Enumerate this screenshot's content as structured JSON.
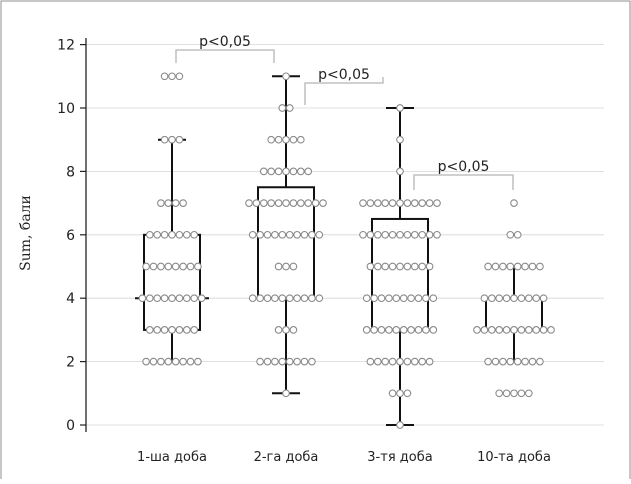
{
  "chart_data": {
    "type": "box",
    "ylabel": "Sum, бали",
    "ylim": [
      0,
      12
    ],
    "yticks": [
      0,
      2,
      4,
      6,
      8,
      10,
      12
    ],
    "grid": true,
    "categories": [
      "1-ша доба",
      "2-га доба",
      "3-тя доба",
      "10-та доба"
    ],
    "boxes": [
      {
        "whisker_low": 2,
        "q1": 3,
        "median": 4,
        "q3": 6,
        "whisker_high": 9
      },
      {
        "whisker_low": 1,
        "q1": 4,
        "median": 6,
        "q3": 7.5,
        "whisker_high": 11
      },
      {
        "whisker_low": 0,
        "q1": 3,
        "median": 6,
        "q3": 6.5,
        "whisker_high": 10
      },
      {
        "whisker_low": 2,
        "q1": 3,
        "median": 3,
        "q3": 4,
        "whisker_high": 5
      }
    ],
    "points": [
      [
        {
          "y": 11,
          "n": 3
        },
        {
          "y": 9,
          "n": 3
        },
        {
          "y": 7,
          "n": 4
        },
        {
          "y": 6,
          "n": 7
        },
        {
          "y": 5,
          "n": 8
        },
        {
          "y": 4,
          "n": 9
        },
        {
          "y": 3,
          "n": 7
        },
        {
          "y": 2,
          "n": 8
        }
      ],
      [
        {
          "y": 11,
          "n": 1
        },
        {
          "y": 10,
          "n": 2
        },
        {
          "y": 9,
          "n": 5
        },
        {
          "y": 8,
          "n": 7
        },
        {
          "y": 7,
          "n": 11
        },
        {
          "y": 6,
          "n": 10
        },
        {
          "y": 5,
          "n": 3
        },
        {
          "y": 4,
          "n": 10
        },
        {
          "y": 3,
          "n": 3
        },
        {
          "y": 2,
          "n": 8
        },
        {
          "y": 1,
          "n": 1
        }
      ],
      [
        {
          "y": 10,
          "n": 1
        },
        {
          "y": 9,
          "n": 1
        },
        {
          "y": 8,
          "n": 1
        },
        {
          "y": 7,
          "n": 11
        },
        {
          "y": 6,
          "n": 11
        },
        {
          "y": 5,
          "n": 9
        },
        {
          "y": 4,
          "n": 10
        },
        {
          "y": 3,
          "n": 10
        },
        {
          "y": 2,
          "n": 9
        },
        {
          "y": 1,
          "n": 3
        },
        {
          "y": 0,
          "n": 1
        }
      ],
      [
        {
          "y": 7,
          "n": 1
        },
        {
          "y": 6,
          "n": 2
        },
        {
          "y": 5,
          "n": 8
        },
        {
          "y": 4,
          "n": 9
        },
        {
          "y": 3,
          "n": 11
        },
        {
          "y": 2,
          "n": 8
        },
        {
          "y": 1,
          "n": 5
        }
      ]
    ],
    "annotations": [
      {
        "text": "p<0,05",
        "from": 0,
        "to": 1
      },
      {
        "text": "p<0,05",
        "from": 1,
        "to": 2
      },
      {
        "text": "p<0,05",
        "from": 2,
        "to": 3
      }
    ],
    "colors": {
      "box": "#111111",
      "point_fill": "#ffffff",
      "point_stroke": "#8a8a8a",
      "grid": "#d6d6d6",
      "bracket": "#b5b5b5"
    }
  }
}
